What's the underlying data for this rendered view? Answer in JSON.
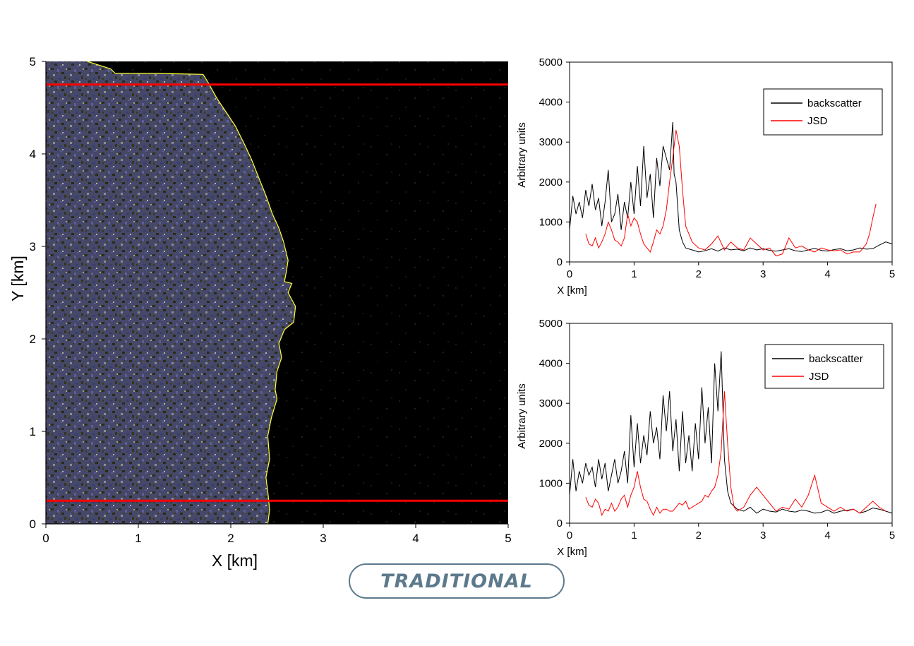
{
  "badge": {
    "label": "TRADITIONAL"
  },
  "chart_data": [
    {
      "type": "heatmap",
      "description_free": true,
      "xlabel": "X [km]",
      "ylabel": "Y [km]",
      "xlim": [
        0,
        5
      ],
      "ylim": [
        0,
        5
      ],
      "x_ticks": [
        "0",
        "1",
        "2",
        "3",
        "4",
        "5"
      ],
      "y_ticks": [
        "0",
        "1",
        "2",
        "3",
        "4",
        "5"
      ],
      "grid": false,
      "colors": {
        "background": "#000000",
        "bright_region": "#4a4f7a",
        "speckle_light": "#c9c9b8",
        "speckle_dark": "#3b3a1c",
        "boundary": "#ffff33",
        "reference_lines": "#ff0000"
      },
      "reference_lines_y": [
        4.75,
        0.25
      ],
      "boundary": {
        "x": [
          0.45,
          0.7,
          0.75,
          1.2,
          1.7,
          1.75,
          1.85,
          1.95,
          2.05,
          2.15,
          2.22,
          2.3,
          2.38,
          2.45,
          2.52,
          2.57,
          2.62,
          2.6,
          2.58,
          2.66,
          2.62,
          2.7,
          2.68,
          2.58,
          2.52,
          2.55,
          2.5,
          2.48,
          2.5,
          2.44,
          2.4,
          2.42,
          2.38,
          2.4,
          2.42,
          2.4
        ],
        "y": [
          5.0,
          4.92,
          4.87,
          4.87,
          4.86,
          4.78,
          4.6,
          4.45,
          4.3,
          4.1,
          3.95,
          3.75,
          3.55,
          3.35,
          3.2,
          3.05,
          2.85,
          2.72,
          2.62,
          2.6,
          2.5,
          2.35,
          2.18,
          2.1,
          1.95,
          1.8,
          1.65,
          1.45,
          1.35,
          1.15,
          0.95,
          0.7,
          0.5,
          0.35,
          0.15,
          0.0
        ]
      }
    },
    {
      "type": "line",
      "xlabel": "X [km]",
      "ylabel": "Arbitrary units",
      "xlim": [
        0,
        5
      ],
      "ylim": [
        0,
        5000
      ],
      "x_ticks": [
        "0",
        "1",
        "2",
        "3",
        "4",
        "5"
      ],
      "y_ticks": [
        "0",
        "1000",
        "2000",
        "3000",
        "4000",
        "5000"
      ],
      "grid": false,
      "legend_position": "top-right",
      "series": [
        {
          "name": "backscatter",
          "color": "#000000",
          "x": [
            0,
            0.05,
            0.1,
            0.15,
            0.2,
            0.25,
            0.3,
            0.35,
            0.4,
            0.45,
            0.5,
            0.55,
            0.6,
            0.65,
            0.7,
            0.75,
            0.8,
            0.85,
            0.9,
            0.95,
            1.0,
            1.05,
            1.1,
            1.15,
            1.2,
            1.25,
            1.3,
            1.35,
            1.4,
            1.45,
            1.5,
            1.55,
            1.6,
            1.62,
            1.65,
            1.7,
            1.75,
            1.8,
            1.9,
            2.0,
            2.1,
            2.2,
            2.3,
            2.4,
            2.5,
            2.6,
            2.7,
            2.8,
            2.9,
            3.0,
            3.1,
            3.2,
            3.3,
            3.4,
            3.5,
            3.6,
            3.7,
            3.8,
            3.9,
            4.0,
            4.1,
            4.2,
            4.3,
            4.4,
            4.5,
            4.6,
            4.7,
            4.8,
            4.9,
            5.0
          ],
          "y": [
            800,
            1650,
            1200,
            1500,
            1100,
            1800,
            1400,
            1950,
            1300,
            1600,
            900,
            1500,
            2300,
            1000,
            1200,
            1700,
            800,
            1500,
            1100,
            2000,
            1200,
            2400,
            1400,
            2900,
            1600,
            2200,
            1100,
            2600,
            1900,
            2900,
            2600,
            2300,
            3500,
            2200,
            2000,
            800,
            500,
            350,
            300,
            250,
            280,
            330,
            270,
            350,
            300,
            320,
            280,
            350,
            300,
            330,
            290,
            270,
            300,
            330,
            280,
            260,
            300,
            340,
            290,
            270,
            310,
            330,
            280,
            300,
            350,
            320,
            330,
            420,
            500,
            450
          ]
        },
        {
          "name": "JSD",
          "color": "#ff0000",
          "x": [
            0.25,
            0.3,
            0.35,
            0.4,
            0.45,
            0.5,
            0.55,
            0.6,
            0.65,
            0.7,
            0.75,
            0.8,
            0.85,
            0.9,
            0.95,
            1.0,
            1.05,
            1.1,
            1.15,
            1.2,
            1.25,
            1.3,
            1.35,
            1.4,
            1.45,
            1.5,
            1.55,
            1.6,
            1.65,
            1.7,
            1.75,
            1.8,
            1.85,
            1.9,
            2.0,
            2.1,
            2.2,
            2.3,
            2.4,
            2.5,
            2.6,
            2.7,
            2.8,
            2.9,
            3.0,
            3.1,
            3.2,
            3.3,
            3.4,
            3.5,
            3.6,
            3.7,
            3.8,
            3.9,
            4.0,
            4.1,
            4.2,
            4.3,
            4.4,
            4.5,
            4.6,
            4.65,
            4.7,
            4.75
          ],
          "y": [
            700,
            450,
            400,
            600,
            350,
            500,
            700,
            1000,
            800,
            550,
            500,
            400,
            600,
            1200,
            900,
            1100,
            1000,
            700,
            450,
            350,
            250,
            500,
            800,
            700,
            900,
            1300,
            2000,
            2600,
            3300,
            2900,
            1800,
            900,
            700,
            500,
            350,
            300,
            450,
            650,
            300,
            500,
            350,
            300,
            600,
            450,
            300,
            350,
            150,
            200,
            600,
            350,
            400,
            300,
            250,
            350,
            300,
            280,
            300,
            200,
            250,
            250,
            450,
            700,
            1100,
            1450
          ]
        }
      ]
    },
    {
      "type": "line",
      "xlabel": "X [km]",
      "ylabel": "Arbitrary units",
      "xlim": [
        0,
        5
      ],
      "ylim": [
        0,
        5000
      ],
      "x_ticks": [
        "0",
        "1",
        "2",
        "3",
        "4",
        "5"
      ],
      "y_ticks": [
        "0",
        "1000",
        "2000",
        "3000",
        "4000",
        "5000"
      ],
      "grid": false,
      "legend_position": "top-right",
      "series": [
        {
          "name": "backscatter",
          "color": "#000000",
          "x": [
            0,
            0.05,
            0.1,
            0.15,
            0.2,
            0.25,
            0.3,
            0.35,
            0.4,
            0.45,
            0.5,
            0.55,
            0.6,
            0.65,
            0.7,
            0.75,
            0.8,
            0.85,
            0.9,
            0.95,
            1.0,
            1.05,
            1.1,
            1.15,
            1.2,
            1.25,
            1.3,
            1.35,
            1.4,
            1.45,
            1.5,
            1.55,
            1.6,
            1.65,
            1.7,
            1.75,
            1.8,
            1.85,
            1.9,
            1.95,
            2.0,
            2.05,
            2.1,
            2.15,
            2.2,
            2.25,
            2.3,
            2.35,
            2.4,
            2.45,
            2.5,
            2.6,
            2.7,
            2.8,
            2.9,
            3.0,
            3.1,
            3.2,
            3.3,
            3.4,
            3.5,
            3.6,
            3.7,
            3.8,
            3.9,
            4.0,
            4.1,
            4.2,
            4.3,
            4.4,
            4.5,
            4.6,
            4.7,
            4.8,
            4.9,
            5.0
          ],
          "y": [
            700,
            1600,
            800,
            1300,
            1000,
            1500,
            1200,
            1400,
            900,
            1600,
            1100,
            1500,
            800,
            1200,
            1600,
            1000,
            1300,
            1800,
            1000,
            2700,
            1400,
            2500,
            1500,
            2200,
            1700,
            2800,
            2000,
            2400,
            1600,
            3200,
            2300,
            3300,
            1800,
            2600,
            1300,
            2800,
            1500,
            2200,
            1300,
            2500,
            1600,
            3400,
            2000,
            2900,
            1500,
            4000,
            2800,
            4300,
            1600,
            800,
            500,
            350,
            300,
            400,
            250,
            350,
            300,
            280,
            350,
            300,
            280,
            330,
            300,
            250,
            270,
            330,
            250,
            300,
            320,
            350,
            250,
            300,
            380,
            350,
            300,
            250
          ]
        },
        {
          "name": "JSD",
          "color": "#ff0000",
          "x": [
            0.25,
            0.3,
            0.35,
            0.4,
            0.45,
            0.5,
            0.55,
            0.6,
            0.65,
            0.7,
            0.75,
            0.8,
            0.85,
            0.9,
            0.95,
            1.0,
            1.05,
            1.1,
            1.15,
            1.2,
            1.25,
            1.3,
            1.35,
            1.4,
            1.45,
            1.5,
            1.55,
            1.6,
            1.65,
            1.7,
            1.75,
            1.8,
            1.85,
            1.9,
            1.95,
            2.0,
            2.05,
            2.1,
            2.15,
            2.2,
            2.25,
            2.3,
            2.35,
            2.4,
            2.45,
            2.5,
            2.55,
            2.6,
            2.7,
            2.8,
            2.9,
            3.0,
            3.1,
            3.2,
            3.3,
            3.4,
            3.5,
            3.6,
            3.7,
            3.8,
            3.9,
            4.0,
            4.1,
            4.2,
            4.3,
            4.4,
            4.5,
            4.6,
            4.7,
            4.8,
            4.9
          ],
          "y": [
            650,
            450,
            400,
            600,
            500,
            200,
            350,
            300,
            500,
            300,
            400,
            600,
            700,
            400,
            700,
            900,
            1300,
            900,
            600,
            550,
            350,
            200,
            400,
            250,
            350,
            350,
            300,
            300,
            400,
            500,
            450,
            550,
            350,
            400,
            450,
            500,
            550,
            700,
            650,
            800,
            900,
            1200,
            1800,
            3300,
            2000,
            900,
            400,
            300,
            400,
            700,
            900,
            700,
            500,
            300,
            400,
            350,
            600,
            400,
            700,
            1200,
            500,
            400,
            300,
            400,
            300,
            350,
            250,
            400,
            550,
            400,
            300
          ]
        }
      ]
    }
  ]
}
